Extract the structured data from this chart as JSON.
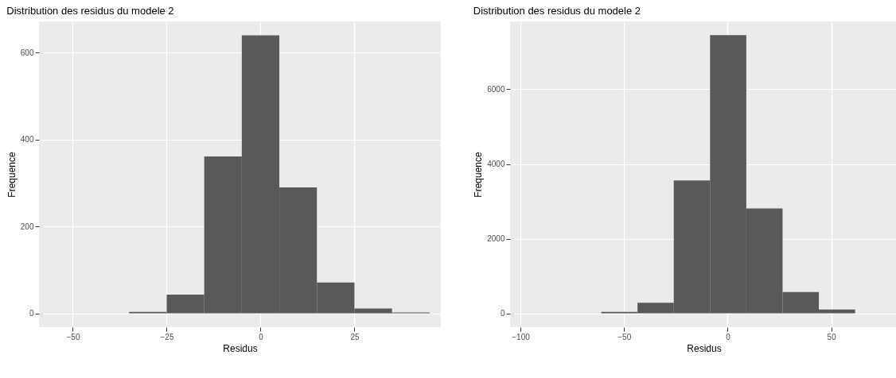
{
  "chart_data": [
    {
      "type": "histogram",
      "title": "Distribution des residus du modele 2",
      "xlabel": "Residus",
      "ylabel": "Frequence",
      "bins": [
        -35,
        -25,
        -15,
        -5,
        5,
        15,
        25,
        35,
        45
      ],
      "values": [
        3,
        43,
        361,
        640,
        290,
        71,
        11,
        2
      ],
      "color": "#595959",
      "xlim": [
        -59,
        48
      ],
      "xticks": [
        -50,
        -25,
        0,
        25
      ],
      "ylim": [
        -32,
        672
      ],
      "yticks": [
        0,
        200,
        400,
        600
      ],
      "grid": true
    },
    {
      "type": "histogram",
      "title": "Distribution des residus du modele 2",
      "xlabel": "Residus",
      "ylabel": "Frequence",
      "bins": [
        -61,
        -43.5,
        -26,
        -8.5,
        9,
        26.5,
        44,
        61.5
      ],
      "values": [
        40,
        280,
        3560,
        7450,
        2810,
        570,
        100
      ],
      "color": "#595959",
      "xlim": [
        -105,
        82
      ],
      "xticks": [
        -100,
        -50,
        0,
        50
      ],
      "ylim": [
        -372,
        7819
      ],
      "yticks": [
        0,
        2000,
        4000,
        6000
      ],
      "grid": true
    }
  ]
}
